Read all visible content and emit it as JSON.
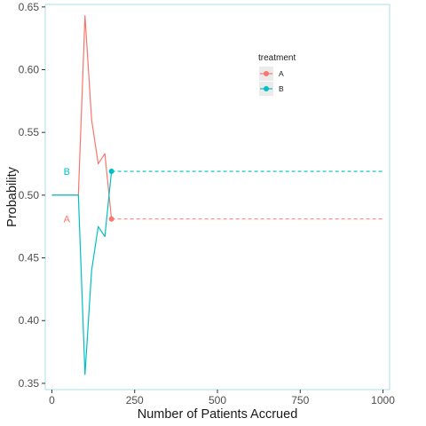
{
  "chart_data": {
    "type": "line",
    "title": "",
    "xlabel": "Number of Patients Accrued",
    "ylabel": "Probability",
    "xlim": [
      -20,
      1020
    ],
    "ylim": [
      0.345,
      0.652
    ],
    "x_ticks": [
      0,
      250,
      500,
      750,
      1000
    ],
    "x_tick_labels": [
      "0",
      "250",
      "500",
      "750",
      "1000"
    ],
    "y_ticks": [
      0.35,
      0.4,
      0.45,
      0.5,
      0.55,
      0.6,
      0.65
    ],
    "y_tick_labels": [
      "0.35",
      "0.40",
      "0.45",
      "0.50",
      "0.55",
      "0.60",
      "0.65"
    ],
    "grid": false,
    "legend": {
      "title": "treatment",
      "position": "top-right"
    },
    "series": [
      {
        "name": "A",
        "color": "#F8766D",
        "solid": {
          "x": [
            0,
            80,
            100,
            120,
            140,
            160,
            180
          ],
          "y": [
            0.5,
            0.5,
            0.643,
            0.56,
            0.525,
            0.533,
            0.481
          ]
        },
        "final_point": {
          "x": 180,
          "y": 0.481
        },
        "dashed": {
          "x": [
            180,
            1000
          ],
          "y": [
            0.481,
            0.481
          ]
        },
        "annotation": {
          "text": "A",
          "x": 45,
          "y": 0.481
        }
      },
      {
        "name": "B",
        "color": "#00BFC4",
        "solid": {
          "x": [
            0,
            80,
            100,
            120,
            140,
            160,
            180
          ],
          "y": [
            0.5,
            0.5,
            0.357,
            0.44,
            0.475,
            0.467,
            0.519
          ]
        },
        "final_point": {
          "x": 180,
          "y": 0.519
        },
        "dashed": {
          "x": [
            180,
            1000
          ],
          "y": [
            0.519,
            0.519
          ]
        },
        "annotation": {
          "text": "B",
          "x": 45,
          "y": 0.519
        }
      }
    ]
  }
}
